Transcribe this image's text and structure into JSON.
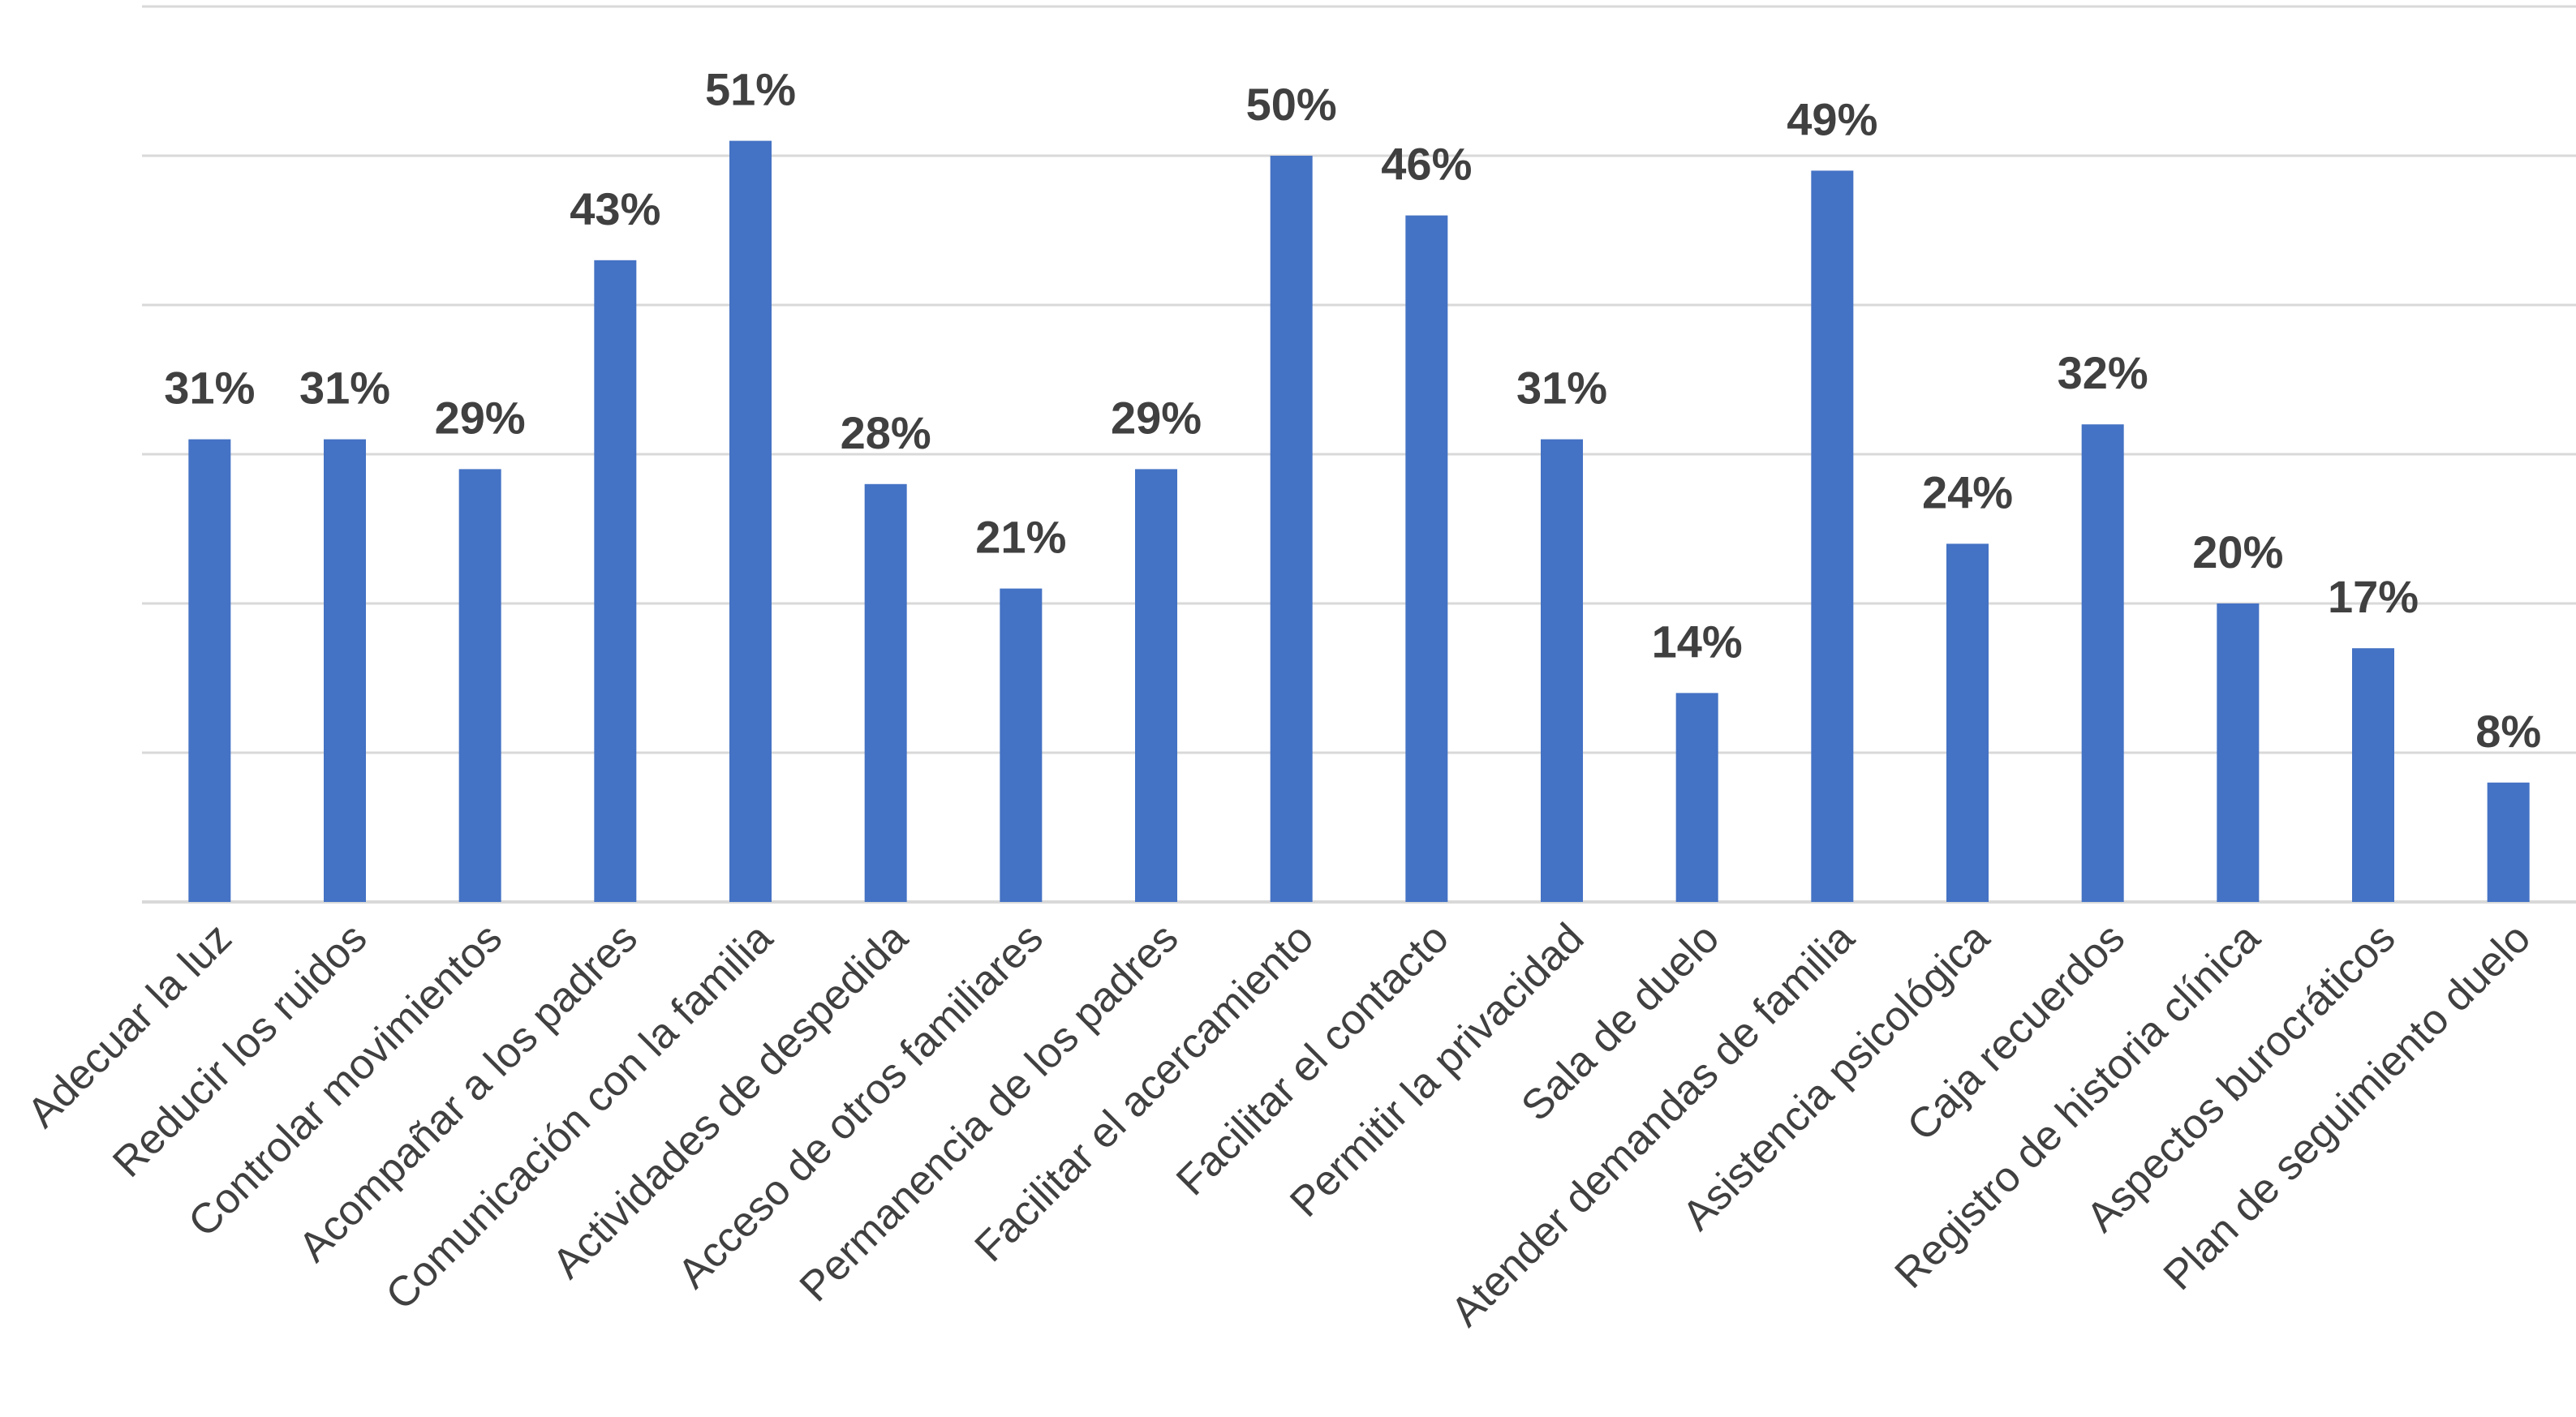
{
  "chart_data": {
    "type": "bar",
    "categories": [
      "Adecuar la luz",
      "Reducir los ruidos",
      "Controlar movimientos",
      "Acompañar a los padres",
      "Comunicación con la familia",
      "Actividades de despedida",
      "Acceso de otros familiares",
      "Permanencia de los padres",
      "Facilitar el acercamiento",
      "Facilitar el contacto",
      "Permitir la privacidad",
      "Sala de duelo",
      "Atender demandas de familia",
      "Asistencia psicológica",
      "Caja recuerdos",
      "Registro de historia clínica",
      "Aspectos burocráticos",
      "Plan de seguimiento duelo"
    ],
    "values": [
      31,
      31,
      29,
      43,
      51,
      28,
      21,
      29,
      50,
      46,
      31,
      14,
      49,
      24,
      32,
      20,
      17,
      8
    ],
    "data_labels": [
      "31%",
      "31%",
      "29%",
      "43%",
      "51%",
      "28%",
      "21%",
      "29%",
      "50%",
      "46%",
      "31%",
      "14%",
      "49%",
      "24%",
      "32%",
      "20%",
      "17%",
      "8%"
    ],
    "ylim": [
      0,
      60
    ],
    "gridlines": true,
    "y_axis_visible": false,
    "legend": "none",
    "bar_color": "#4472c4",
    "grid_color": "#d9d9d9",
    "text_color": "#404040"
  }
}
